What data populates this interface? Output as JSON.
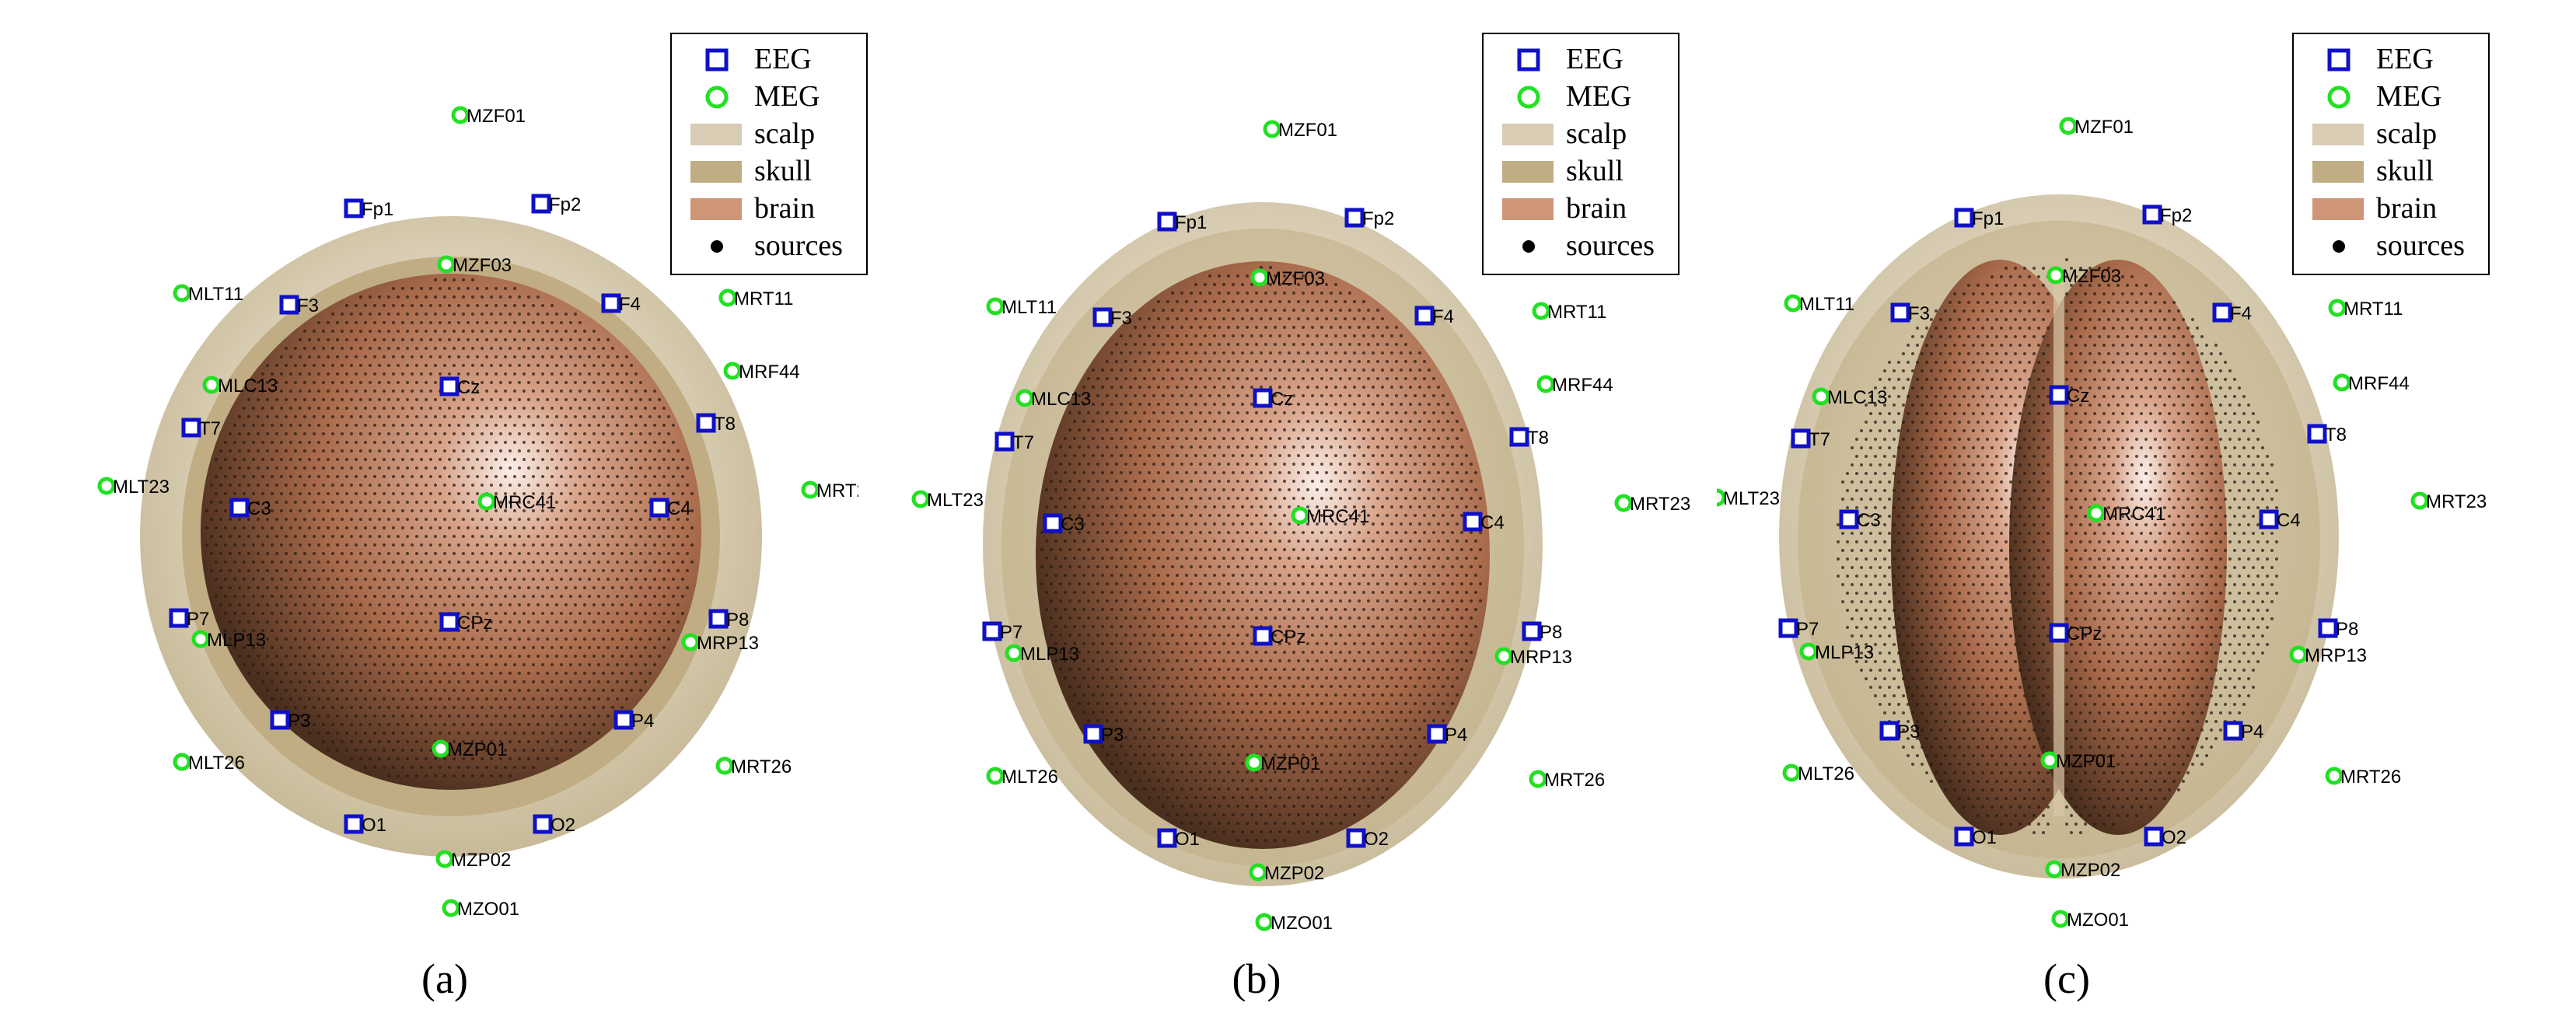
{
  "legend": {
    "eeg": "EEG",
    "meg": "MEG",
    "scalp": "scalp",
    "skull": "skull",
    "brain": "brain",
    "sources": "sources"
  },
  "colors": {
    "eeg": "#1010c8",
    "meg": "#22e022",
    "scalp": "#d8ccb4",
    "skull": "#c0ad84",
    "brain": "#cf9577",
    "sources": "#000000"
  },
  "panels": [
    {
      "caption": "(a)",
      "model": "sphere"
    },
    {
      "caption": "(b)",
      "model": "realistic-smooth"
    },
    {
      "caption": "(c)",
      "model": "realistic-cortex"
    }
  ],
  "eeg_labels": [
    "Fp1",
    "Fp2",
    "F3",
    "F4",
    "T7",
    "T8",
    "C3",
    "Cz",
    "C4",
    "P7",
    "P8",
    "P3",
    "P4",
    "CPz",
    "O1",
    "O2"
  ],
  "meg_labels": [
    "MZF01",
    "MZF03",
    "MLT11",
    "MRT11",
    "MRF44",
    "MLC13",
    "MLT23",
    "MRT23",
    "MRC41",
    "MLP13",
    "MRP13",
    "MLT26",
    "MRT26",
    "MZP01",
    "MZP02",
    "MZO01"
  ]
}
